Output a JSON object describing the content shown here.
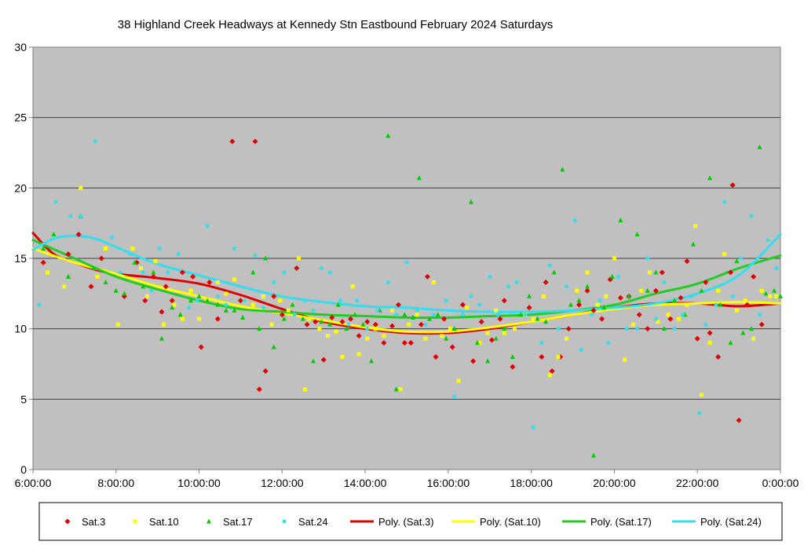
{
  "chart_data": {
    "type": "scatter",
    "title": "38 Highland Creek Headways at Kennedy Stn Eastbound February 2024  Saturdays",
    "xlabel": "",
    "ylabel": "",
    "xlim": [
      6,
      24
    ],
    "ylim": [
      0,
      30
    ],
    "x_ticks": [
      "6:00:00",
      "8:00:00",
      "10:00:00",
      "12:00:00",
      "14:00:00",
      "16:00:00",
      "18:00:00",
      "20:00:00",
      "22:00:00",
      "0:00:00"
    ],
    "y_ticks": [
      "0",
      "5",
      "10",
      "15",
      "20",
      "25",
      "30"
    ],
    "grid": "horizontal",
    "plot_background": "#c0c0c0",
    "legend_position": "bottom",
    "series": [
      {
        "name": "Sat.3",
        "marker": "diamond",
        "color": "#e00000",
        "x": [
          6.25,
          6.85,
          7.1,
          7.4,
          7.65,
          8.2,
          8.5,
          8.7,
          8.9,
          9.1,
          9.2,
          9.35,
          9.6,
          9.85,
          10.05,
          10.25,
          10.45,
          10.8,
          11.0,
          11.35,
          11.45,
          11.6,
          11.8,
          12.0,
          12.35,
          12.6,
          12.8,
          13.0,
          13.2,
          13.45,
          13.65,
          13.85,
          14.05,
          14.25,
          14.45,
          14.65,
          14.8,
          14.95,
          15.1,
          15.35,
          15.5,
          15.7,
          15.9,
          16.1,
          16.35,
          16.6,
          16.8,
          17.05,
          17.25,
          17.35,
          17.55,
          17.95,
          18.25,
          18.35,
          18.5,
          18.7,
          18.9,
          19.15,
          19.35,
          19.5,
          19.7,
          19.9,
          20.15,
          20.35,
          20.6,
          20.8,
          21.0,
          21.15,
          21.35,
          21.6,
          21.75,
          22.0,
          22.2,
          22.3,
          22.5,
          22.8,
          22.85,
          23.0,
          23.2,
          23.35,
          23.55
        ],
        "y": [
          14.7,
          15.3,
          16.7,
          13.0,
          15.0,
          12.3,
          14.7,
          12.0,
          13.7,
          11.2,
          13.0,
          12.0,
          14.0,
          13.7,
          8.7,
          13.3,
          10.7,
          23.3,
          12.0,
          23.3,
          5.7,
          7.0,
          12.3,
          11.0,
          14.3,
          10.3,
          10.5,
          7.8,
          10.8,
          10.5,
          10.7,
          9.5,
          10.5,
          10.3,
          9.0,
          10.2,
          11.7,
          9.0,
          9.0,
          10.3,
          13.7,
          8.0,
          10.7,
          8.7,
          11.7,
          7.7,
          10.5,
          9.2,
          10.7,
          12.0,
          7.3,
          11.5,
          8.0,
          13.3,
          7.0,
          8.0,
          10.0,
          11.7,
          12.7,
          11.3,
          10.7,
          13.5,
          12.2,
          12.3,
          11.0,
          10.0,
          12.7,
          14.0,
          10.7,
          12.2,
          14.8,
          9.3,
          13.3,
          9.7,
          8.0,
          14.0,
          20.2,
          3.5,
          11.7,
          13.7,
          10.3
        ]
      },
      {
        "name": "Sat.10",
        "marker": "square",
        "color": "#ffff00",
        "x": [
          6.35,
          6.75,
          7.15,
          7.55,
          7.75,
          8.05,
          8.4,
          8.6,
          8.75,
          8.95,
          9.15,
          9.4,
          9.6,
          9.8,
          10.0,
          10.2,
          10.45,
          10.65,
          10.85,
          11.1,
          11.3,
          11.55,
          11.75,
          11.95,
          12.15,
          12.4,
          12.55,
          12.65,
          12.9,
          13.1,
          13.3,
          13.45,
          13.7,
          13.85,
          14.05,
          14.25,
          14.45,
          14.65,
          14.85,
          15.05,
          15.25,
          15.45,
          15.65,
          15.85,
          16.05,
          16.25,
          16.45,
          16.75,
          16.95,
          17.15,
          17.35,
          17.6,
          17.85,
          18.05,
          18.3,
          18.45,
          18.65,
          18.85,
          19.1,
          19.35,
          19.6,
          19.8,
          20.0,
          20.25,
          20.45,
          20.65,
          20.85,
          21.05,
          21.3,
          21.55,
          21.75,
          21.95,
          22.1,
          22.3,
          22.5,
          22.65,
          22.95,
          23.15,
          23.35,
          23.55,
          23.75,
          23.9
        ],
        "y": [
          14.0,
          13.0,
          20.0,
          13.7,
          15.7,
          10.3,
          15.7,
          14.3,
          12.3,
          14.8,
          10.3,
          11.7,
          10.7,
          12.7,
          10.7,
          12.0,
          13.3,
          12.5,
          13.5,
          12.0,
          11.7,
          12.3,
          10.3,
          12.0,
          11.3,
          15.0,
          5.7,
          10.7,
          10.0,
          9.5,
          9.8,
          8.0,
          13.0,
          8.2,
          9.3,
          10.0,
          9.5,
          11.3,
          5.7,
          10.3,
          11.0,
          9.3,
          13.3,
          9.5,
          10.0,
          6.3,
          11.5,
          9.0,
          9.7,
          11.3,
          9.7,
          10.0,
          11.0,
          10.7,
          12.3,
          6.7,
          8.0,
          9.3,
          12.7,
          14.0,
          11.7,
          12.3,
          15.0,
          7.8,
          10.3,
          12.7,
          14.0,
          10.5,
          11.0,
          10.7,
          11.7,
          17.3,
          5.3,
          9.0,
          12.7,
          15.3,
          11.3,
          12.0,
          9.3,
          12.7,
          12.3,
          12.3
        ]
      },
      {
        "name": "Sat.17",
        "marker": "triangle",
        "color": "#00cc00",
        "x": [
          6.25,
          6.5,
          6.85,
          7.15,
          7.45,
          7.75,
          8.0,
          8.2,
          8.45,
          8.65,
          8.9,
          9.1,
          9.35,
          9.55,
          9.8,
          10.0,
          10.2,
          10.45,
          10.65,
          10.85,
          11.05,
          11.3,
          11.45,
          11.6,
          11.8,
          12.05,
          12.25,
          12.5,
          12.75,
          12.95,
          13.15,
          13.35,
          13.55,
          13.75,
          13.95,
          14.15,
          14.35,
          14.55,
          14.75,
          14.95,
          15.15,
          15.3,
          15.55,
          15.75,
          15.95,
          16.15,
          16.35,
          16.55,
          16.7,
          16.95,
          17.15,
          17.35,
          17.55,
          17.75,
          17.95,
          18.15,
          18.35,
          18.55,
          18.75,
          18.95,
          19.15,
          19.35,
          19.5,
          19.75,
          19.95,
          20.15,
          20.35,
          20.55,
          20.8,
          21.0,
          21.2,
          21.45,
          21.7,
          21.9,
          22.1,
          22.3,
          22.55,
          22.8,
          22.95,
          23.1,
          23.3,
          23.5,
          23.65,
          23.85,
          24.0
        ],
        "y": [
          15.7,
          16.7,
          13.7,
          18.0,
          14.3,
          13.3,
          12.7,
          12.5,
          14.7,
          13.0,
          14.0,
          9.3,
          11.5,
          11.0,
          12.0,
          12.3,
          12.0,
          11.7,
          11.3,
          11.3,
          10.8,
          14.0,
          10.0,
          15.0,
          8.7,
          10.7,
          11.7,
          10.7,
          7.7,
          10.5,
          10.3,
          11.7,
          10.0,
          11.0,
          10.3,
          7.7,
          11.3,
          23.7,
          5.7,
          11.0,
          10.8,
          20.7,
          10.7,
          11.0,
          9.3,
          10.0,
          11.0,
          19.0,
          9.0,
          7.7,
          9.3,
          10.0,
          8.0,
          11.0,
          12.3,
          10.7,
          10.5,
          14.0,
          21.3,
          11.7,
          12.0,
          13.0,
          1.0,
          11.5,
          13.7,
          17.7,
          12.3,
          16.7,
          12.7,
          14.0,
          10.0,
          12.0,
          11.0,
          16.0,
          12.7,
          20.7,
          11.7,
          9.0,
          14.8,
          9.7,
          10.0,
          22.9,
          12.5,
          12.7,
          12.3
        ]
      },
      {
        "name": "Sat.24",
        "marker": "circle",
        "color": "#33ddee",
        "x": [
          6.15,
          6.55,
          6.9,
          7.15,
          7.5,
          7.9,
          8.1,
          8.35,
          8.65,
          8.85,
          9.05,
          9.25,
          9.5,
          9.75,
          9.95,
          10.2,
          10.45,
          10.65,
          10.85,
          11.1,
          11.35,
          11.55,
          11.8,
          12.05,
          12.3,
          12.55,
          12.75,
          12.95,
          13.15,
          13.4,
          13.6,
          13.8,
          14.05,
          14.3,
          14.55,
          14.75,
          15.0,
          15.25,
          15.45,
          15.65,
          15.95,
          16.15,
          16.35,
          16.55,
          16.75,
          17.0,
          17.2,
          17.45,
          17.65,
          17.85,
          18.05,
          18.25,
          18.45,
          18.65,
          18.85,
          19.05,
          19.2,
          19.45,
          19.65,
          19.85,
          20.1,
          20.3,
          20.55,
          20.8,
          21.0,
          21.2,
          21.45,
          21.65,
          21.85,
          22.05,
          22.2,
          22.45,
          22.65,
          22.85,
          23.05,
          23.3,
          23.5,
          23.7,
          23.9
        ],
        "y": [
          11.7,
          19.0,
          18.0,
          18.0,
          23.3,
          16.5,
          14.0,
          15.3,
          14.0,
          12.7,
          15.7,
          14.0,
          15.3,
          11.5,
          12.0,
          17.3,
          12.3,
          11.7,
          15.7,
          12.0,
          15.2,
          11.5,
          13.3,
          14.0,
          11.0,
          12.0,
          11.3,
          14.3,
          14.0,
          12.0,
          10.3,
          12.0,
          10.0,
          11.3,
          13.3,
          11.0,
          14.7,
          11.3,
          10.3,
          11.0,
          12.0,
          5.2,
          11.0,
          12.3,
          11.7,
          13.7,
          11.0,
          13.0,
          13.3,
          11.0,
          3.0,
          9.0,
          14.5,
          10.0,
          13.0,
          17.7,
          8.5,
          11.0,
          12.0,
          9.0,
          13.7,
          10.0,
          10.0,
          15.0,
          10.7,
          13.3,
          10.0,
          11.0,
          12.3,
          4.0,
          10.3,
          11.7,
          19.0,
          12.3,
          15.0,
          18.0,
          11.0,
          16.3,
          14.3
        ]
      }
    ],
    "trendlines": [
      {
        "name": "Poly. (Sat.3)",
        "color": "#dd0000",
        "x": [
          6,
          6.5,
          7,
          7.5,
          8,
          9,
          10,
          11,
          12,
          13,
          14,
          15,
          16,
          17,
          18,
          19,
          20,
          21,
          22,
          23,
          24
        ],
        "y": [
          16.8,
          15.3,
          14.7,
          14.2,
          13.9,
          13.6,
          13.2,
          12.4,
          11.4,
          10.5,
          10.0,
          9.7,
          9.7,
          10.0,
          10.5,
          11.0,
          11.5,
          11.8,
          11.8,
          11.6,
          11.8
        ]
      },
      {
        "name": "Poly. (Sat.10)",
        "color": "#ffff00",
        "x": [
          6,
          7,
          8,
          9,
          10,
          11,
          12,
          13,
          14,
          15,
          16,
          17,
          18,
          19,
          20,
          21,
          22,
          23,
          24
        ],
        "y": [
          15.7,
          14.7,
          13.9,
          13.0,
          12.3,
          11.6,
          11.1,
          10.6,
          10.1,
          9.8,
          9.8,
          10.1,
          10.5,
          11.0,
          11.4,
          11.7,
          11.8,
          11.9,
          11.8
        ]
      },
      {
        "name": "Poly. (Sat.17)",
        "color": "#22cc22",
        "x": [
          6,
          7,
          8,
          9,
          10,
          11,
          12,
          13,
          14,
          15,
          16,
          17,
          18,
          19,
          20,
          21,
          22,
          23,
          24
        ],
        "y": [
          16.3,
          15.0,
          13.7,
          12.8,
          12.0,
          11.4,
          11.2,
          11.0,
          10.9,
          10.8,
          10.8,
          10.9,
          11.0,
          11.3,
          11.7,
          12.5,
          13.2,
          14.3,
          15.2
        ]
      },
      {
        "name": "Poly. (Sat.24)",
        "color": "#33ddee",
        "x": [
          6,
          6.5,
          7,
          7.5,
          8,
          9,
          10,
          11,
          12,
          13,
          14,
          15,
          16,
          17,
          18,
          19,
          20,
          21,
          22,
          23,
          24
        ],
        "y": [
          15.6,
          16.4,
          16.6,
          16.4,
          15.8,
          14.6,
          13.8,
          13.0,
          12.3,
          11.9,
          11.6,
          11.5,
          11.3,
          11.2,
          11.2,
          11.3,
          11.5,
          11.8,
          12.5,
          13.8,
          16.7
        ]
      }
    ],
    "legend": [
      "Sat.3",
      "Sat.10",
      "Sat.17",
      "Sat.24",
      "Poly. (Sat.3)",
      "Poly. (Sat.10)",
      "Poly. (Sat.17)",
      "Poly. (Sat.24)"
    ]
  }
}
